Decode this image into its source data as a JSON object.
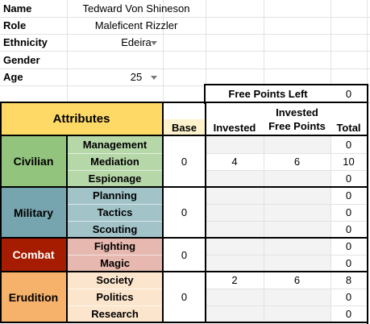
{
  "character": {
    "name": {
      "label": "Name",
      "value": "Tedward Von Shineson"
    },
    "role": {
      "label": "Role",
      "value": "Maleficent Rizzler"
    },
    "ethnicity": {
      "label": "Ethnicity",
      "value": "Edeira"
    },
    "gender": {
      "label": "Gender",
      "value": ""
    },
    "age": {
      "label": "Age",
      "value": "25"
    }
  },
  "free_points": {
    "label": "Free Points Left",
    "value": "0"
  },
  "table_header": {
    "attributes": "Attributes",
    "base": "Base",
    "invested": "Invested",
    "invested_free_line1": "Invested",
    "invested_free_line2": "Free Points",
    "total": "Total"
  },
  "groups": [
    {
      "name": "Civilian",
      "base": "0",
      "color": "#93c47d",
      "sub_color": "#b6d7a8",
      "rows": [
        {
          "attribute": "Management",
          "invested": "",
          "free": "",
          "total": "0"
        },
        {
          "attribute": "Mediation",
          "invested": "4",
          "free": "6",
          "total": "10"
        },
        {
          "attribute": "Espionage",
          "invested": "",
          "free": "",
          "total": "0"
        }
      ]
    },
    {
      "name": "Military",
      "base": "0",
      "color": "#76a5af",
      "sub_color": "#a2c4c9",
      "rows": [
        {
          "attribute": "Planning",
          "invested": "",
          "free": "",
          "total": "0"
        },
        {
          "attribute": "Tactics",
          "invested": "",
          "free": "",
          "total": "0"
        },
        {
          "attribute": "Scouting",
          "invested": "",
          "free": "",
          "total": "0"
        }
      ]
    },
    {
      "name": "Combat",
      "base": "0",
      "color": "#a61c00",
      "sub_color": "#e6b8af",
      "rows": [
        {
          "attribute": "Fighting",
          "invested": "",
          "free": "",
          "total": "0"
        },
        {
          "attribute": "Magic",
          "invested": "",
          "free": "",
          "total": "0"
        }
      ]
    },
    {
      "name": "Erudition",
      "base": "0",
      "color": "#f6b26b",
      "sub_color": "#fce5cd",
      "rows": [
        {
          "attribute": "Society",
          "invested": "2",
          "free": "6",
          "total": "8"
        },
        {
          "attribute": "Politics",
          "invested": "",
          "free": "",
          "total": "0"
        },
        {
          "attribute": "Research",
          "invested": "",
          "free": "",
          "total": "0"
        }
      ]
    }
  ],
  "colors": {
    "header_yellow": "#ffd966",
    "base_header": "#fff2cc",
    "input_gray": "#f3f3f3"
  }
}
